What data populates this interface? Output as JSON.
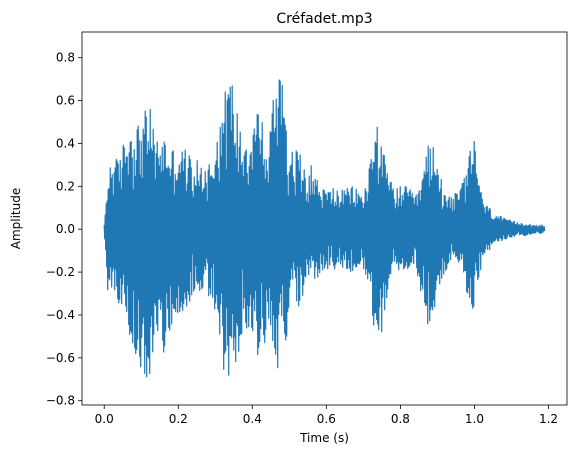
{
  "chart_data": {
    "type": "line",
    "title": "Créfadet.mp3",
    "xlabel": "Time (s)",
    "ylabel": "Amplitude",
    "xlim": [
      -0.06,
      1.25
    ],
    "ylim": [
      -0.82,
      0.92
    ],
    "xticks": [
      0.0,
      0.2,
      0.4,
      0.6,
      0.8,
      1.0,
      1.2
    ],
    "xtick_labels": [
      "0.0",
      "0.2",
      "0.4",
      "0.6",
      "0.8",
      "1.0",
      "1.2"
    ],
    "yticks": [
      -0.8,
      -0.6,
      -0.4,
      -0.2,
      0.0,
      0.2,
      0.4,
      0.6,
      0.8
    ],
    "ytick_labels": [
      "−0.8",
      "−0.6",
      "−0.4",
      "−0.2",
      "0.0",
      "0.2",
      "0.4",
      "0.6",
      "0.8"
    ],
    "grid": false,
    "legend": "none",
    "series": [
      {
        "color": "#1f77b4",
        "envelope": {
          "t": [
            0.0,
            0.01,
            0.02,
            0.04,
            0.06,
            0.08,
            0.1,
            0.12,
            0.14,
            0.16,
            0.18,
            0.2,
            0.22,
            0.24,
            0.26,
            0.28,
            0.3,
            0.32,
            0.34,
            0.36,
            0.38,
            0.4,
            0.42,
            0.44,
            0.46,
            0.48,
            0.5,
            0.52,
            0.54,
            0.56,
            0.58,
            0.6,
            0.62,
            0.64,
            0.66,
            0.68,
            0.7,
            0.72,
            0.74,
            0.76,
            0.78,
            0.8,
            0.82,
            0.84,
            0.86,
            0.88,
            0.9,
            0.92,
            0.94,
            0.96,
            0.98,
            1.0,
            1.02,
            1.04,
            1.06,
            1.08,
            1.1,
            1.12,
            1.14,
            1.16,
            1.18,
            1.19
          ],
          "upper": [
            0.02,
            0.25,
            0.35,
            0.32,
            0.47,
            0.5,
            0.5,
            0.6,
            0.42,
            0.45,
            0.38,
            0.38,
            0.38,
            0.32,
            0.32,
            0.3,
            0.42,
            0.6,
            0.75,
            0.55,
            0.45,
            0.5,
            0.62,
            0.32,
            0.7,
            0.85,
            0.35,
            0.38,
            0.32,
            0.3,
            0.22,
            0.18,
            0.2,
            0.18,
            0.2,
            0.2,
            0.15,
            0.35,
            0.55,
            0.3,
            0.2,
            0.2,
            0.2,
            0.15,
            0.25,
            0.45,
            0.3,
            0.2,
            0.16,
            0.18,
            0.3,
            0.45,
            0.15,
            0.1,
            0.07,
            0.05,
            0.04,
            0.03,
            0.03,
            0.02,
            0.02,
            0.01
          ],
          "lower": [
            -0.02,
            -0.3,
            -0.32,
            -0.35,
            -0.45,
            -0.58,
            -0.65,
            -0.72,
            -0.5,
            -0.6,
            -0.45,
            -0.4,
            -0.42,
            -0.3,
            -0.3,
            -0.3,
            -0.42,
            -0.68,
            -0.75,
            -0.6,
            -0.45,
            -0.5,
            -0.62,
            -0.5,
            -0.6,
            -0.72,
            -0.4,
            -0.38,
            -0.3,
            -0.28,
            -0.22,
            -0.2,
            -0.2,
            -0.18,
            -0.2,
            -0.2,
            -0.18,
            -0.35,
            -0.62,
            -0.35,
            -0.2,
            -0.2,
            -0.2,
            -0.15,
            -0.35,
            -0.5,
            -0.3,
            -0.2,
            -0.14,
            -0.18,
            -0.3,
            -0.45,
            -0.15,
            -0.1,
            -0.07,
            -0.05,
            -0.04,
            -0.03,
            -0.03,
            -0.02,
            -0.02,
            -0.01
          ]
        }
      }
    ]
  }
}
